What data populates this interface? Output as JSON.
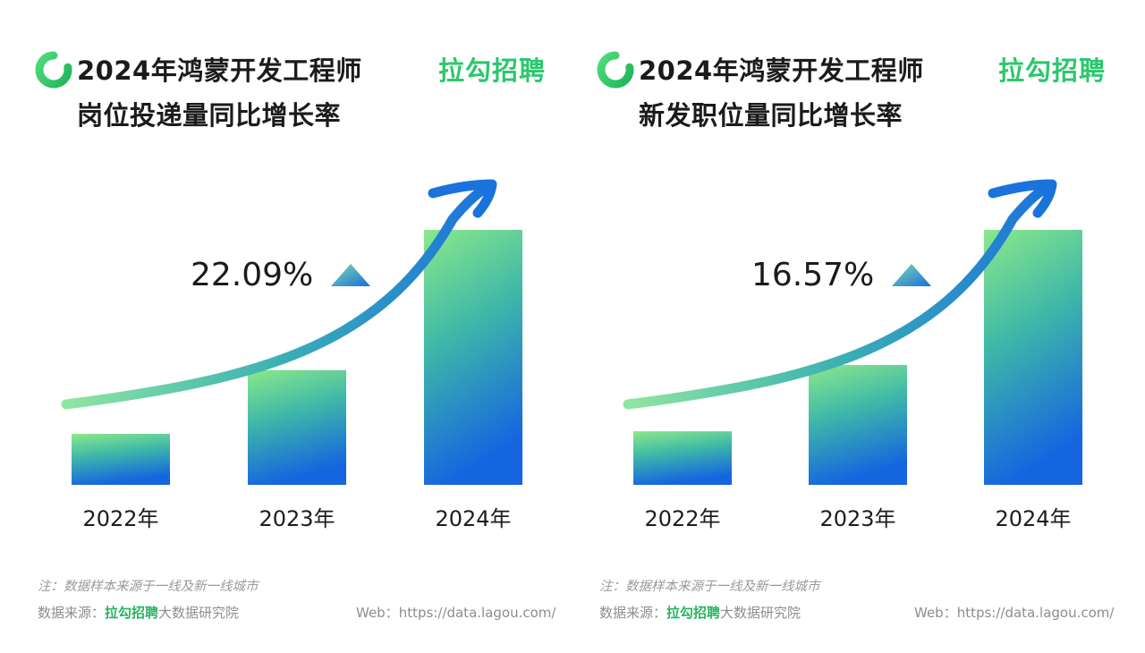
{
  "panels": [
    {
      "title_line1": "2024年鸿蒙开发工程师",
      "title_line2": "岗位投递量同比增长率",
      "brand": "拉勾招聘",
      "note": "注：数据样本来源于一线及新一线城市",
      "source_prefix": "数据来源：",
      "source_brand": "拉勾招聘",
      "source_suffix": "大数据研究院",
      "web": "Web：https://data.lagou.com/"
    },
    {
      "title_line1": "2024年鸿蒙开发工程师",
      "title_line2": "新发职位量同比增长率",
      "brand": "拉勾招聘",
      "note": "注：数据样本来源于一线及新一线城市",
      "source_prefix": "数据来源：",
      "source_brand": "拉勾招聘",
      "source_suffix": "大数据研究院",
      "web": "Web：https://data.lagou.com/"
    }
  ],
  "colors": {
    "brand_green": "#2cc86c",
    "bar_top": "#8be98a",
    "bar_bottom": "#1565e0",
    "arrow_start": "#8ee6a0",
    "arrow_end": "#1a72dc"
  },
  "chart_data": [
    {
      "type": "bar",
      "title": "2024年鸿蒙开发工程师岗位投递量同比增长率",
      "categories": [
        "2022年",
        "2023年",
        "2024年"
      ],
      "values": [
        20,
        45,
        100
      ],
      "growth_label": "22.09%",
      "ylim": [
        0,
        100
      ],
      "axis_values_shown": false
    },
    {
      "type": "bar",
      "title": "2024年鸿蒙开发工程师新发职位量同比增长率",
      "categories": [
        "2022年",
        "2023年",
        "2024年"
      ],
      "values": [
        21,
        47,
        100
      ],
      "growth_label": "16.57%",
      "ylim": [
        0,
        100
      ],
      "axis_values_shown": false
    }
  ]
}
